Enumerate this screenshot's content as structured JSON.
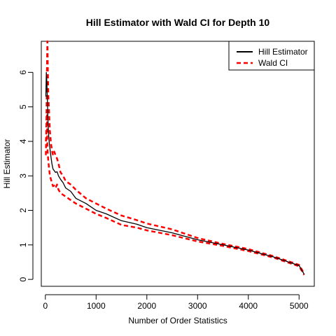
{
  "chart_data": {
    "type": "line",
    "title": "Hill Estimator with Wald CI for Depth 10",
    "xlabel": "Number of Order Statistics",
    "ylabel": "Hill Estimator",
    "xlim": [
      -80,
      5300
    ],
    "ylim": [
      -0.2,
      6.9
    ],
    "x_ticks": [
      0,
      1000,
      2000,
      3000,
      4000,
      5000
    ],
    "y_ticks": [
      0,
      1,
      2,
      3,
      4,
      5,
      6
    ],
    "grid": false,
    "legend_position": "top-right",
    "series": [
      {
        "name": "Hill Estimator",
        "color": "#000000",
        "dash": "solid",
        "x": [
          10,
          20,
          30,
          40,
          50,
          60,
          75,
          90,
          110,
          130,
          150,
          175,
          200,
          230,
          260,
          300,
          350,
          400,
          500,
          600,
          800,
          1000,
          1200,
          1500,
          1800,
          2000,
          2500,
          3000,
          3500,
          4000,
          4500,
          5000,
          5100
        ],
        "y": [
          5.3,
          6.0,
          5.7,
          5.2,
          4.7,
          4.3,
          4.0,
          3.8,
          3.55,
          3.35,
          3.2,
          3.15,
          3.1,
          3.12,
          3.0,
          2.9,
          2.8,
          2.65,
          2.55,
          2.35,
          2.2,
          2.0,
          1.9,
          1.7,
          1.6,
          1.5,
          1.35,
          1.15,
          1.0,
          0.85,
          0.65,
          0.4,
          0.15
        ]
      },
      {
        "name": "Wald CI",
        "color": "#ff0000",
        "dash": "dashed",
        "x": [
          10,
          20,
          30,
          40,
          50,
          60,
          75,
          90,
          110,
          130,
          150,
          175,
          200,
          230,
          260,
          300,
          350,
          400,
          500,
          600,
          800,
          1000,
          1200,
          1500,
          1800,
          2000,
          2500,
          3000,
          3500,
          4000,
          4500,
          5000,
          5100
        ],
        "y": [
          4.0,
          4.2,
          6.0,
          6.9,
          6.0,
          5.3,
          4.8,
          4.3,
          3.95,
          3.75,
          3.6,
          3.7,
          3.6,
          3.5,
          3.35,
          3.1,
          3.0,
          2.85,
          2.75,
          2.6,
          2.35,
          2.2,
          2.05,
          1.85,
          1.72,
          1.62,
          1.45,
          1.2,
          1.03,
          0.88,
          0.67,
          0.42,
          0.17
        ]
      },
      {
        "name": "",
        "color": "#ff0000",
        "dash": "dashed",
        "x": [
          10,
          20,
          30,
          40,
          50,
          60,
          75,
          90,
          110,
          130,
          150,
          175,
          200,
          230,
          260,
          300,
          350,
          400,
          500,
          600,
          800,
          1000,
          1200,
          1500,
          1800,
          2000,
          2500,
          3000,
          3500,
          4000,
          4500,
          5000,
          5100
        ],
        "y": [
          3.6,
          4.4,
          4.9,
          3.8,
          3.6,
          3.4,
          3.2,
          3.0,
          2.9,
          2.8,
          2.7,
          2.72,
          2.65,
          2.75,
          2.6,
          2.5,
          2.45,
          2.4,
          2.3,
          2.2,
          2.05,
          1.9,
          1.78,
          1.58,
          1.5,
          1.42,
          1.28,
          1.1,
          0.97,
          0.82,
          0.63,
          0.38,
          0.13
        ]
      }
    ]
  }
}
